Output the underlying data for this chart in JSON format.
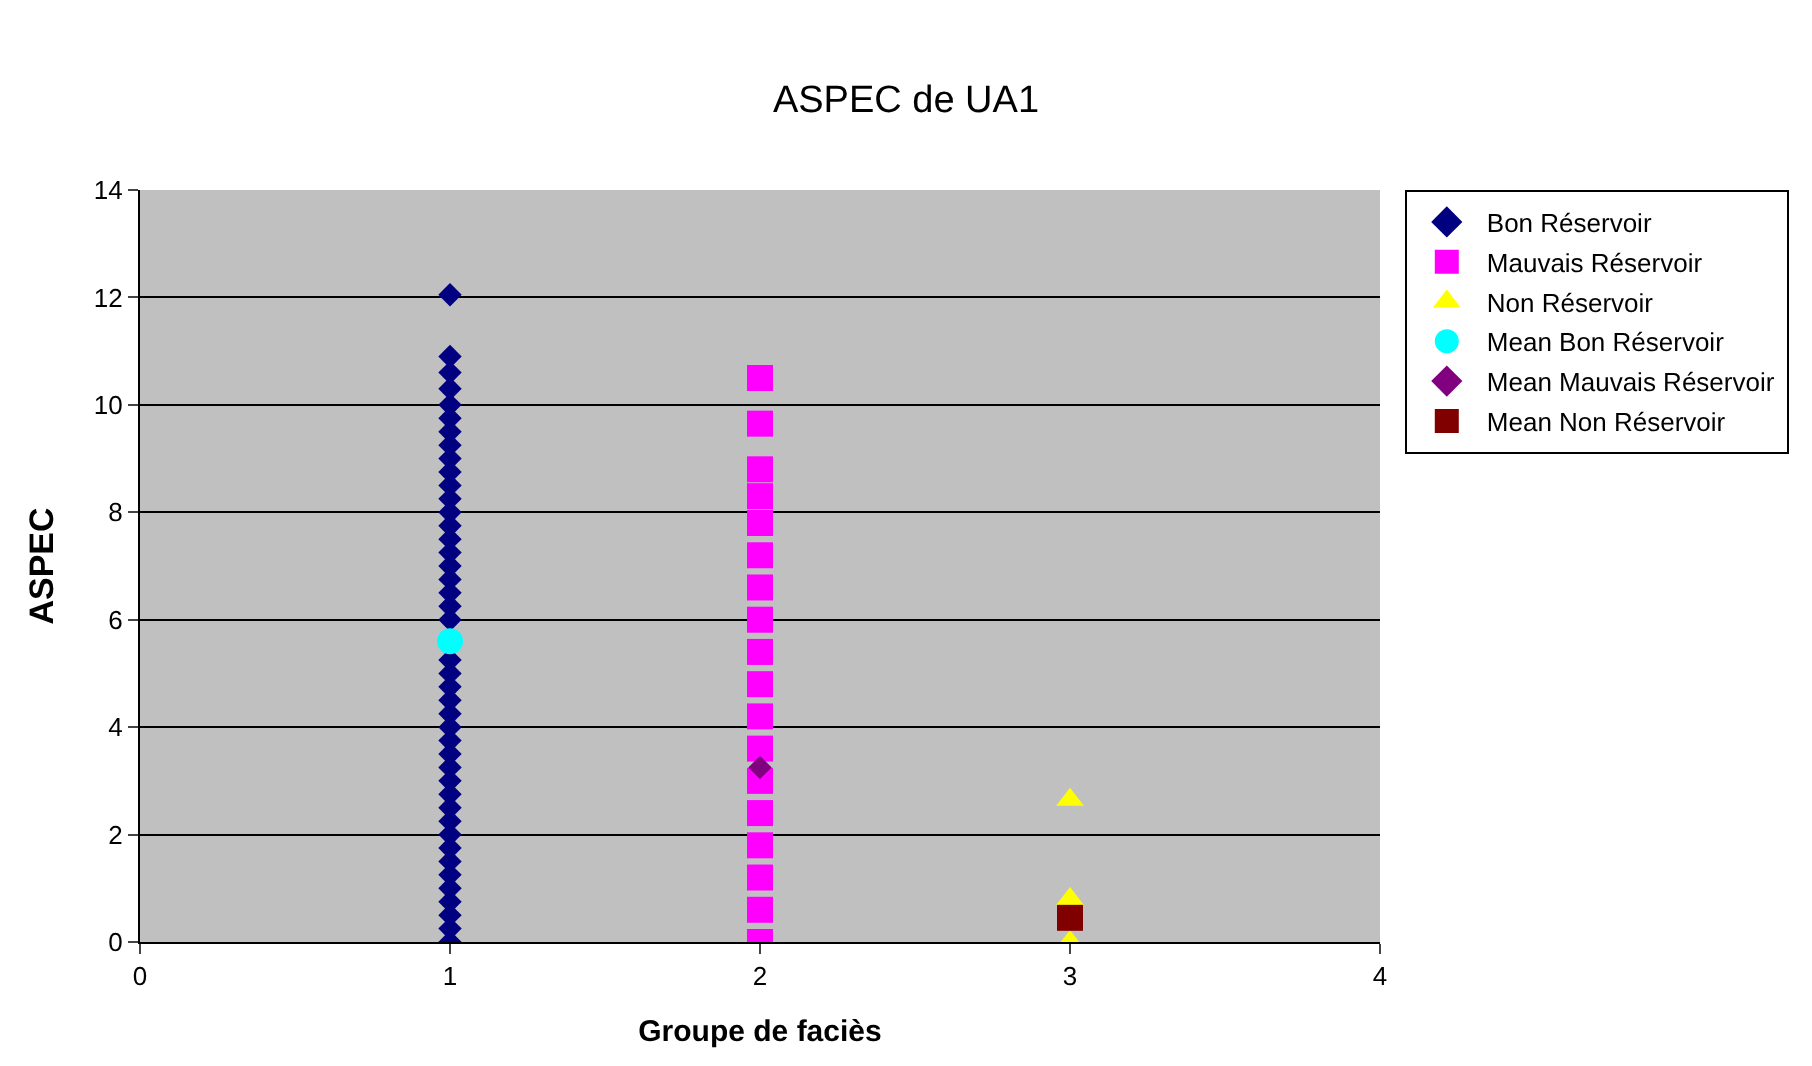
{
  "chart_data": {
    "type": "scatter",
    "title": "ASPEC de UA1",
    "xlabel": "Groupe de faciès",
    "ylabel": "ASPEC",
    "xlim": [
      0,
      4
    ],
    "xticks": [
      0,
      1,
      2,
      3,
      4
    ],
    "ylim": [
      0,
      14
    ],
    "yticks": [
      0,
      2,
      4,
      6,
      8,
      10,
      12,
      14
    ],
    "grid": "y",
    "legend": "right",
    "series": [
      {
        "name": "Bon Réservoir",
        "color": "#000080",
        "marker": "diamond",
        "x": [
          1,
          1,
          1,
          1,
          1,
          1,
          1,
          1,
          1,
          1,
          1,
          1,
          1,
          1,
          1,
          1,
          1,
          1,
          1,
          1,
          1,
          1,
          1,
          1,
          1,
          1,
          1,
          1,
          1,
          1,
          1,
          1,
          1,
          1,
          1,
          1,
          1,
          1,
          1,
          1,
          1,
          1,
          1
        ],
        "values": [
          0,
          0.25,
          0.5,
          0.75,
          1,
          1.25,
          1.5,
          1.75,
          2,
          2.25,
          2.5,
          2.75,
          3,
          3.25,
          3.5,
          3.75,
          4,
          4.25,
          4.5,
          4.75,
          5,
          5.25,
          6,
          6.25,
          6.5,
          6.75,
          7,
          7.25,
          7.5,
          7.75,
          8,
          8.25,
          8.5,
          8.75,
          9,
          9.25,
          9.5,
          9.75,
          10,
          10.3,
          10.6,
          10.9,
          12.05
        ]
      },
      {
        "name": "Mauvais Réservoir",
        "color": "#ff00ff",
        "marker": "square",
        "x": [
          2,
          2,
          2,
          2,
          2,
          2,
          2,
          2,
          2,
          2,
          2,
          2,
          2,
          2,
          2,
          2,
          2,
          2
        ],
        "values": [
          0,
          0.6,
          1.2,
          1.8,
          2.4,
          3.0,
          3.6,
          4.2,
          4.8,
          5.4,
          6.0,
          6.6,
          7.2,
          7.8,
          8.3,
          8.8,
          9.65,
          10.5
        ]
      },
      {
        "name": "Non Réservoir",
        "color": "#ffff00",
        "marker": "triangle",
        "x": [
          3,
          3,
          3
        ],
        "values": [
          0,
          0.8,
          2.65
        ]
      },
      {
        "name": "Mean Bon Réservoir",
        "color": "#00ffff",
        "marker": "circle",
        "x": [
          1
        ],
        "values": [
          5.6
        ]
      },
      {
        "name": "Mean Mauvais Réservoir",
        "color": "#800080",
        "marker": "diamond",
        "x": [
          2
        ],
        "values": [
          3.25
        ]
      },
      {
        "name": "Mean Non Réservoir",
        "color": "#800000",
        "marker": "square",
        "x": [
          3
        ],
        "values": [
          0.45
        ]
      }
    ]
  }
}
